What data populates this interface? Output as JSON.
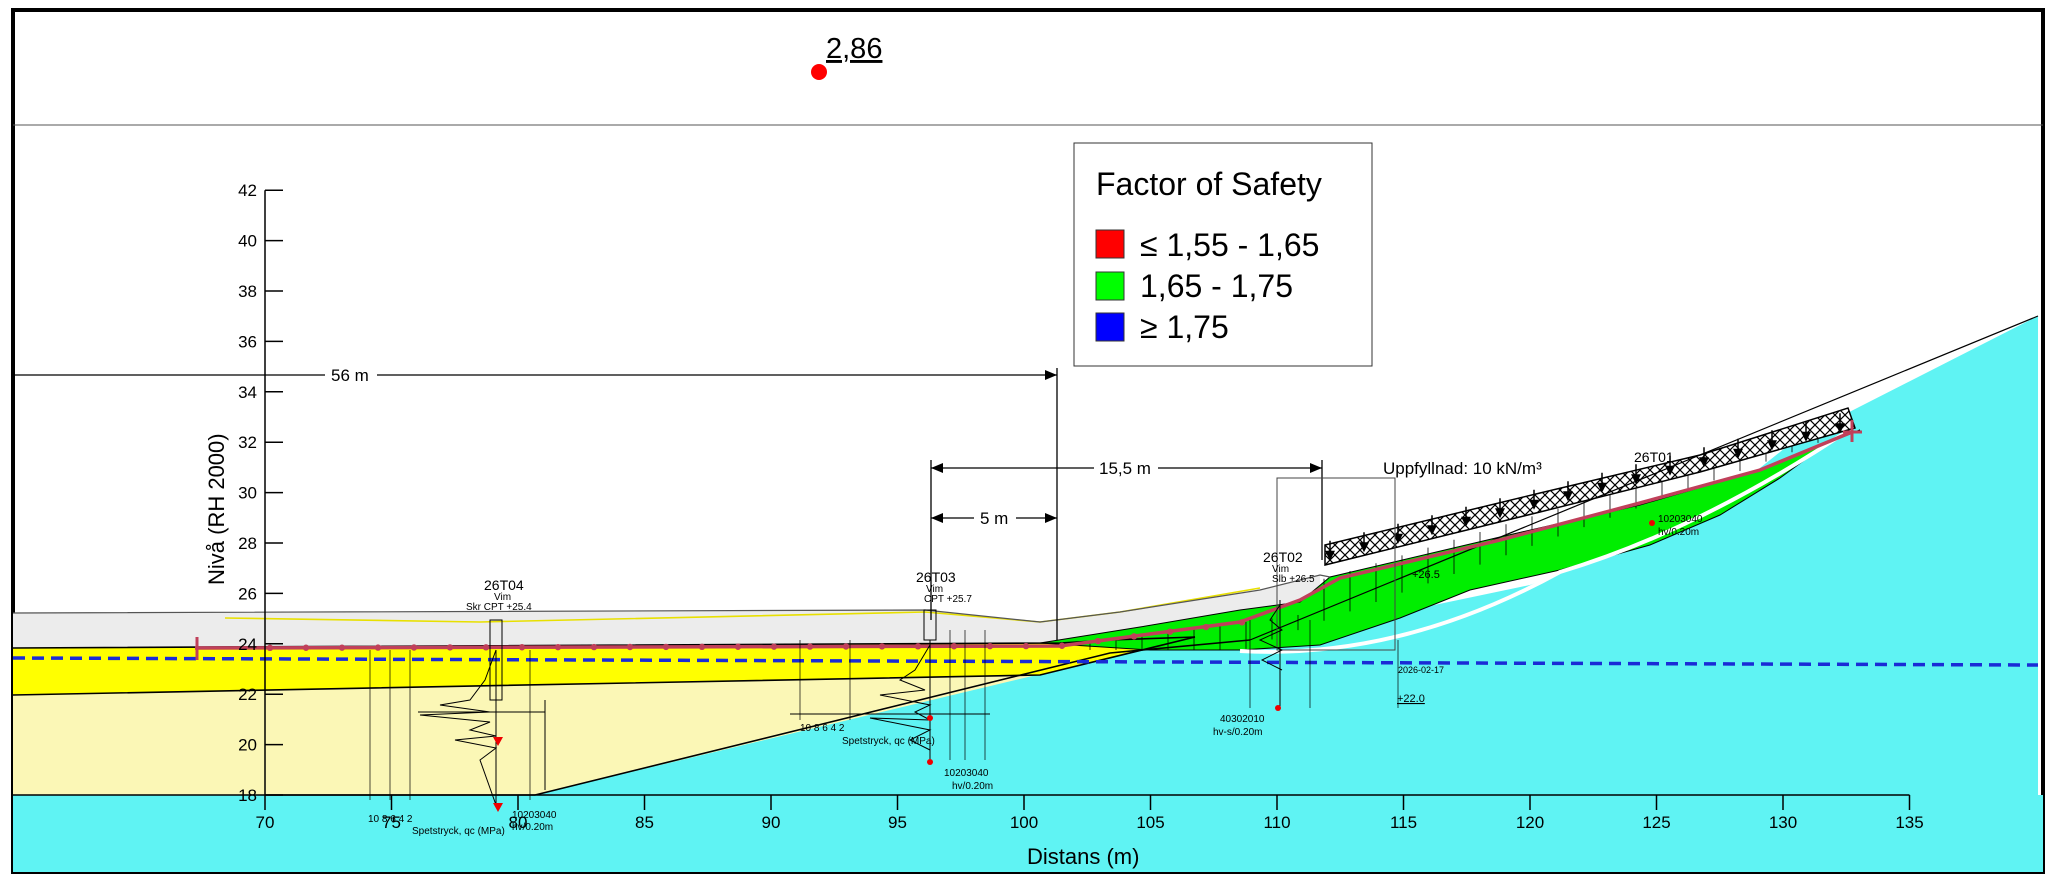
{
  "fos_value": "2,86",
  "legend": {
    "title": "Factor of Safety",
    "items": [
      {
        "label": "≤ 1,55 - 1,65",
        "color": "#ff0000"
      },
      {
        "label": "1,65 - 1,75",
        "color": "#00ff00"
      },
      {
        "label": "≥ 1,75",
        "color": "#0000ff"
      }
    ]
  },
  "axes": {
    "xlabel": "Distans (m)",
    "ylabel": "Nivå (RH 2000)",
    "xticks": [
      "70",
      "75",
      "80",
      "85",
      "90",
      "95",
      "100",
      "105",
      "110",
      "115",
      "120",
      "125",
      "130",
      "135"
    ],
    "yticks": [
      "18",
      "20",
      "22",
      "24",
      "26",
      "28",
      "30",
      "32",
      "34",
      "36",
      "38",
      "40",
      "42"
    ]
  },
  "dimensions": {
    "d56": "56 m",
    "d15": "15,5 m",
    "d5": "5 m"
  },
  "load_label": "Uppfyllnad: 10 kN/m³",
  "boreholes": {
    "t04": {
      "id": "26T04",
      "method": "Vim",
      "cpt": "Skr   CPT +25.4"
    },
    "t03": {
      "id": "26T03",
      "method": "Vim",
      "cpt": "CPT +25.7"
    },
    "t02": {
      "id": "26T02",
      "method": "Vim",
      "cpt": "Slb +26.5"
    },
    "t01": {
      "id": "26T01"
    }
  },
  "cpt_captions": {
    "t04_scale": "10  8    6    4    2",
    "t04_axis": "Spetstryck, qc (MPa)",
    "t04_hv": "10203040",
    "t04_hv2": "hv/0.20m",
    "t03_scale": "10   8    6    4    2",
    "t03_axis": "Spetstryck, qc (MPa)",
    "t03_hv": "10203040",
    "t03_hv2": "hv/0.20m",
    "t02_hv": "40302010",
    "t02_hv2": "hv-s/0.20m",
    "t01_hv": "10203040",
    "t01_hv2": "hv/0.20m"
  },
  "annotations": {
    "level_265": "+26.5",
    "level_220": "+22.0",
    "date": "2026-02-17"
  },
  "colors": {
    "water": "#5ff3f3",
    "sand_dark": "#ffff00",
    "sand_light": "#fbf7b6",
    "fill_grey": "#ececec",
    "slip_green": "#00ee00",
    "slip_surface": "#c0405a",
    "groundwater": "#1a2bd6"
  }
}
